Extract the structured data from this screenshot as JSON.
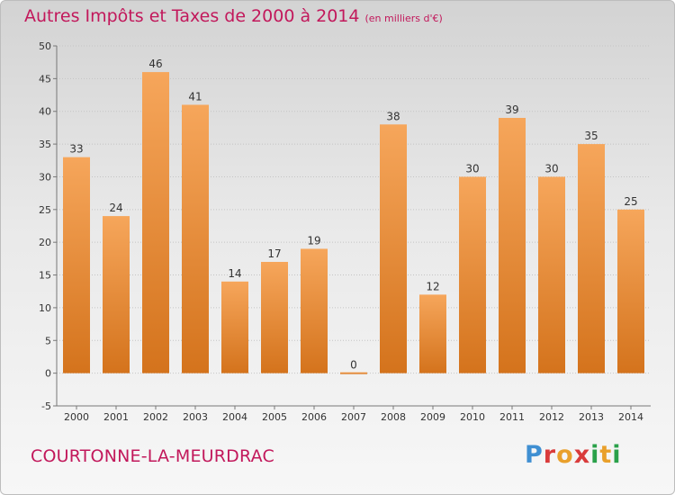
{
  "header": {
    "title": "Autres Impôts et Taxes de 2000 à 2014",
    "unit": "(en milliers d'€)"
  },
  "footer": {
    "place": "COURTONNE-LA-MEURDRAC",
    "logo": {
      "p": "P",
      "r": "r",
      "o": "o",
      "x": "x",
      "i1": "i",
      "t": "t",
      "i2": "i"
    }
  },
  "colors": {
    "title": "#c2185b",
    "bar_light": "#f6a65b",
    "bar_dark": "#d4731c",
    "axis": "#777777",
    "grid": "#c4c4c4"
  },
  "chart_data": {
    "type": "bar",
    "title": "Autres Impôts et Taxes de 2000 à 2014",
    "subtitle": "(en milliers d'€)",
    "xlabel": "",
    "ylabel": "",
    "categories": [
      "2000",
      "2001",
      "2002",
      "2003",
      "2004",
      "2005",
      "2006",
      "2007",
      "2008",
      "2009",
      "2010",
      "2011",
      "2012",
      "2013",
      "2014"
    ],
    "values": [
      33,
      24,
      46,
      41,
      14,
      17,
      19,
      0,
      38,
      12,
      30,
      39,
      30,
      35,
      25
    ],
    "ylim": [
      -5,
      50
    ],
    "yticks": [
      -5,
      0,
      5,
      10,
      15,
      20,
      25,
      30,
      35,
      40,
      45,
      50
    ],
    "grid": true,
    "data_labels": true,
    "legend": "none"
  }
}
